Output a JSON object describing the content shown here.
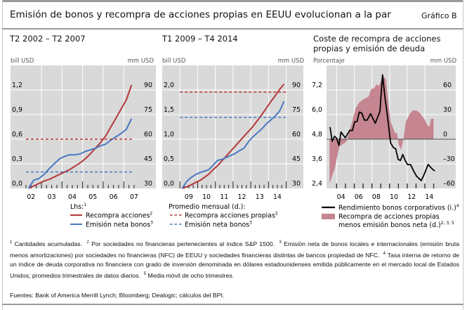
{
  "header": {
    "title": "Emisión de bonos y recompra de acciones propias en EEUU evolucionan a la par",
    "figure_label": "Gráfico B"
  },
  "colors": {
    "red": "#b5383a",
    "blue": "#4a78c0",
    "black": "#000000",
    "pink": "#c58591",
    "plot_bg": "#d9d9d9"
  },
  "chart_data": [
    {
      "type": "line",
      "title": "T2 2002 – T2 2007",
      "ylabel_left": "bill USD",
      "ylabel_right": "mm USD",
      "ylim_left": [
        0,
        1.5
      ],
      "ylim_right": [
        30,
        105
      ],
      "yticks_left": [
        "0,0",
        "0,3",
        "0,6",
        "0,9",
        "1,2"
      ],
      "yticks_right": [
        "30",
        "45",
        "60",
        "75",
        "90"
      ],
      "xticks": [
        "02",
        "03",
        "04",
        "05",
        "06",
        "07"
      ],
      "grid": true,
      "legend_heading": "Lhs:",
      "legend_heading_sup": "1",
      "x_quarters": [
        "2002-Q2",
        "2002-Q3",
        "2002-Q4",
        "2003-Q1",
        "2003-Q2",
        "2003-Q3",
        "2003-Q4",
        "2004-Q1",
        "2004-Q2",
        "2004-Q3",
        "2004-Q4",
        "2005-Q1",
        "2005-Q2",
        "2005-Q3",
        "2005-Q4",
        "2006-Q1",
        "2006-Q2",
        "2006-Q3",
        "2006-Q4",
        "2007-Q1",
        "2007-Q2"
      ],
      "series": [
        {
          "name": "Recompra acciones",
          "sup": "2",
          "axis": "left",
          "style": "solid",
          "color": "#b5383a",
          "values": [
            0,
            0.03,
            0.06,
            0.09,
            0.11,
            0.14,
            0.17,
            0.2,
            0.23,
            0.27,
            0.31,
            0.36,
            0.42,
            0.49,
            0.56,
            0.64,
            0.75,
            0.86,
            0.97,
            1.08,
            1.26
          ]
        },
        {
          "name": "Emisión neta bonos",
          "sup": "3",
          "axis": "left",
          "style": "solid",
          "color": "#4a78c0",
          "values": [
            0,
            0.1,
            0.12,
            0.17,
            0.24,
            0.3,
            0.36,
            0.39,
            0.41,
            0.41,
            0.42,
            0.45,
            0.47,
            0.49,
            0.52,
            0.54,
            0.59,
            0.63,
            0.67,
            0.72,
            0.85
          ]
        },
        {
          "axis": "right",
          "style": "dashed",
          "color": "#b5383a",
          "constant": 60
        },
        {
          "axis": "right",
          "style": "dashed",
          "color": "#4a78c0",
          "constant": 40
        }
      ]
    },
    {
      "type": "line",
      "title": "T1 2009 – T4 2014",
      "ylabel_left": "bill USD",
      "ylabel_right": "mm USD",
      "ylim_left": [
        0,
        2.5
      ],
      "ylim_right": [
        30,
        105
      ],
      "yticks_left": [
        "0,0",
        "0,5",
        "1,0",
        "1,5",
        "2,0"
      ],
      "yticks_right": [
        "30",
        "45",
        "60",
        "75",
        "90"
      ],
      "xticks": [
        "09",
        "10",
        "11",
        "12",
        "13",
        "14"
      ],
      "grid": true,
      "legend_heading": "Promedio mensual (d.):",
      "x_quarters": [
        "2009-Q1",
        "2009-Q2",
        "2009-Q3",
        "2009-Q4",
        "2010-Q1",
        "2010-Q2",
        "2010-Q3",
        "2010-Q4",
        "2011-Q1",
        "2011-Q2",
        "2011-Q3",
        "2011-Q4",
        "2012-Q1",
        "2012-Q2",
        "2012-Q3",
        "2012-Q4",
        "2013-Q1",
        "2013-Q2",
        "2013-Q3",
        "2013-Q4",
        "2014-Q1",
        "2014-Q2",
        "2014-Q3",
        "2014-Q4"
      ],
      "series": [
        {
          "axis": "left",
          "style": "solid",
          "color": "#b5383a",
          "values": [
            0,
            0.03,
            0.07,
            0.12,
            0.16,
            0.22,
            0.29,
            0.38,
            0.46,
            0.56,
            0.66,
            0.76,
            0.86,
            0.96,
            1.06,
            1.16,
            1.26,
            1.38,
            1.5,
            1.63,
            1.76,
            1.88,
            2.01,
            2.12
          ]
        },
        {
          "axis": "left",
          "style": "solid",
          "color": "#4a78c0",
          "values": [
            0,
            0.14,
            0.22,
            0.28,
            0.32,
            0.35,
            0.38,
            0.47,
            0.57,
            0.59,
            0.63,
            0.67,
            0.71,
            0.77,
            0.82,
            0.95,
            1.05,
            1.13,
            1.21,
            1.31,
            1.39,
            1.47,
            1.57,
            1.77
          ]
        },
        {
          "name": "Recompra acciones propias",
          "sup": "2",
          "axis": "right",
          "style": "dashed",
          "color": "#b5383a",
          "constant": 88.7
        },
        {
          "name": "Emisión neta bonos",
          "sup": "3",
          "axis": "right",
          "style": "dashed",
          "color": "#4a78c0",
          "constant": 73.3
        }
      ]
    },
    {
      "type": "line+area",
      "title": "Coste de recompra de acciones propias y emisión de deuda",
      "title_lines": [
        "Coste de recompra de acciones",
        "propias y emisión de deuda"
      ],
      "ylabel_left": "Porcentaje",
      "ylabel_right": "mm USD",
      "ylim_left": [
        2.4,
        8.4
      ],
      "ylim_right": [
        -60,
        90
      ],
      "yticks_left": [
        "2,4",
        "3,6",
        "4,8",
        "6,0",
        "7,2"
      ],
      "yticks_right": [
        "–60",
        "–30",
        "0",
        "30",
        "60"
      ],
      "xticks": [
        "04",
        "06",
        "08",
        "10",
        "12",
        "14"
      ],
      "grid": true,
      "series": [
        {
          "name": "Rendimiento bonos corporativos (i.)",
          "sup": "4",
          "axis": "left",
          "type": "line",
          "color": "#000000",
          "x": [
            2003.26,
            2003.5,
            2003.77,
            2004.0,
            2004.27,
            2004.5,
            2004.98,
            2005.51,
            2005.78,
            2006.04,
            2006.31,
            2006.57,
            2006.84,
            2007.16,
            2007.45,
            2007.85,
            2008.38,
            2008.91,
            2009.2,
            2009.46,
            2009.73,
            2010.12,
            2010.44,
            2010.7,
            2010.97,
            2011.23,
            2011.5,
            2011.77,
            2012.04,
            2012.38,
            2012.73,
            2013.05,
            2013.58,
            2013.84,
            2014.37,
            2014.77,
            2015.12
          ],
          "values": [
            5.39,
            4.7,
            4.94,
            4.85,
            4.5,
            5.15,
            4.87,
            5.24,
            5.22,
            5.64,
            5.66,
            6.12,
            6.08,
            5.73,
            5.73,
            6.04,
            5.58,
            6.15,
            7.94,
            6.89,
            6.04,
            4.62,
            4.39,
            4.33,
            3.82,
            3.76,
            4.05,
            3.76,
            3.56,
            3.56,
            3.25,
            3.0,
            2.78,
            3.0,
            3.57,
            3.37,
            3.25
          ]
        },
        {
          "name": "Recompra de acciones propias menos emisión bonos neta (d.)",
          "sup": "2, 3, 5",
          "name_lines": [
            "Recompra de acciones propias",
            "menos emisión bonos neta (d.)"
          ],
          "axis": "right",
          "type": "area",
          "color": "#c58591",
          "x": [
            2003.2,
            2003.52,
            2003.79,
            2004.0,
            2004.32,
            2004.72,
            2005.11,
            2005.38,
            2005.78,
            2006.18,
            2006.57,
            2007.1,
            2007.63,
            2007.9,
            2008.25,
            2008.51,
            2008.78,
            2009.05,
            2009.32,
            2009.58,
            2009.84,
            2010.12,
            2010.39,
            2010.65,
            2010.84,
            2011.05,
            2011.31,
            2011.58,
            2011.84,
            2012.24,
            2012.64,
            2013.05,
            2013.44,
            2013.71,
            2013.97,
            2014.24,
            2014.5,
            2014.71,
            2014.98
          ],
          "values": [
            -54,
            -44,
            -36,
            -24,
            -9,
            -6,
            -3,
            7,
            22,
            38,
            45,
            49,
            52,
            61,
            62,
            67,
            65,
            72,
            77,
            73,
            47,
            21,
            14,
            7,
            8,
            -7,
            -13,
            1,
            21,
            30,
            35,
            35,
            32,
            28,
            24,
            18,
            15,
            25,
            25
          ]
        }
      ],
      "zero_line": true
    }
  ],
  "footnotes": [
    {
      "num": "1",
      "text": "Cantidades acumuladas."
    },
    {
      "num": "2",
      "text": "Por sociedades no financieras pertenecientes al índice S&P 1500."
    },
    {
      "num": "3",
      "text": "Emisión neta de bonos locales e internacionales (emisión bruta menos amortizaciones) por sociedades no financieras (NFC) de EEUU y sociedades financieras distintas de bancos propiedad de NFC."
    },
    {
      "num": "4",
      "text": "Tasa interna de retorno de un índice de deuda corporativa no financiera con grado de inversión denominada en dólares estadounidenses emitida públicamente en el mercado local de Estados Unidos; promedios trimestrales de datos diarios."
    },
    {
      "num": "5",
      "text": "Media móvil de ocho trimestres."
    }
  ],
  "sources": "Fuentes: Bank of America Merrill Lynch; Bloomberg; Dealogic; cálculos del BPI."
}
